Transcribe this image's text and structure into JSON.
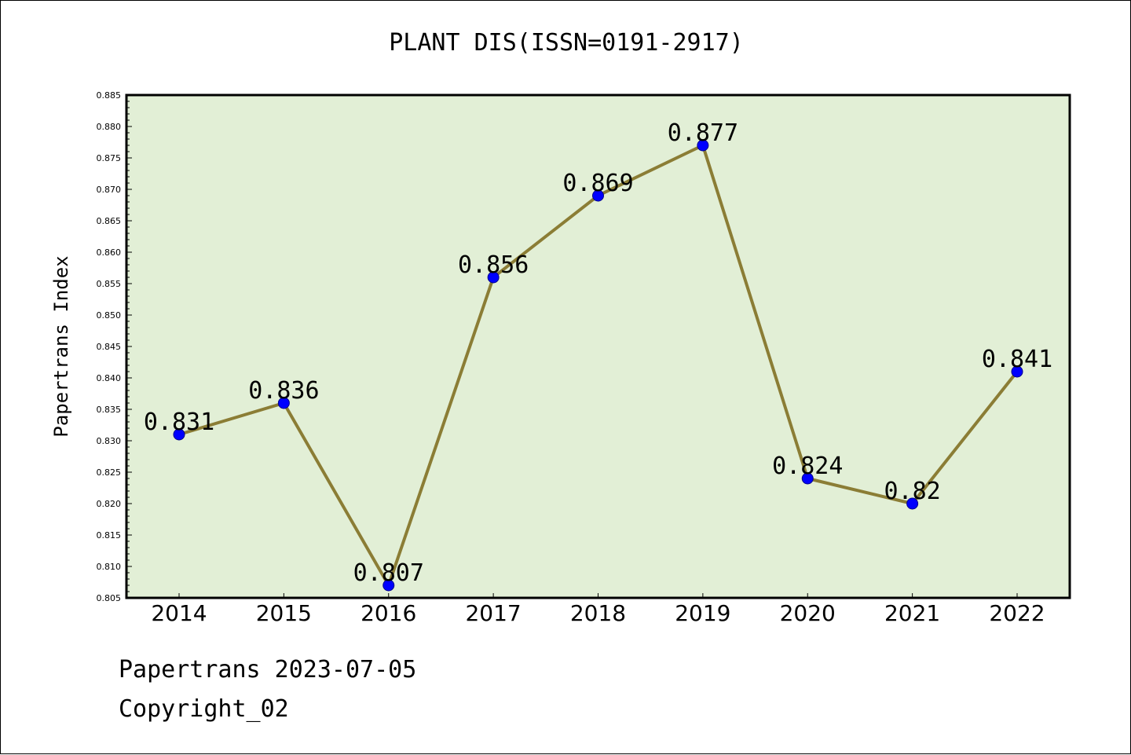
{
  "chart_data": {
    "type": "line",
    "title": "PLANT DIS(ISSN=0191-2917)",
    "xlabel": "",
    "ylabel": "Papertrans Index",
    "categories": [
      "2014",
      "2015",
      "2016",
      "2017",
      "2018",
      "2019",
      "2020",
      "2021",
      "2022"
    ],
    "values": [
      0.831,
      0.836,
      0.807,
      0.856,
      0.869,
      0.877,
      0.824,
      0.82,
      0.841
    ],
    "value_labels": [
      "0.831",
      "0.836",
      "0.807",
      "0.856",
      "0.869",
      "0.877",
      "0.824",
      "0.82",
      "0.841"
    ],
    "ylim": [
      0.805,
      0.885
    ],
    "yticks": [
      "0.805",
      "0.810",
      "0.815",
      "0.820",
      "0.825",
      "0.830",
      "0.835",
      "0.840",
      "0.845",
      "0.850",
      "0.855",
      "0.860",
      "0.865",
      "0.870",
      "0.875",
      "0.880",
      "0.885"
    ],
    "grid": false,
    "legend": "none",
    "colors": {
      "line": "#8B7D35",
      "marker": "#0000FF",
      "plot_background": "#E2EFD6",
      "axes": "#000000"
    }
  },
  "footer": {
    "source": "Papertrans 2023-07-05",
    "copyright": "Copyright_02"
  }
}
